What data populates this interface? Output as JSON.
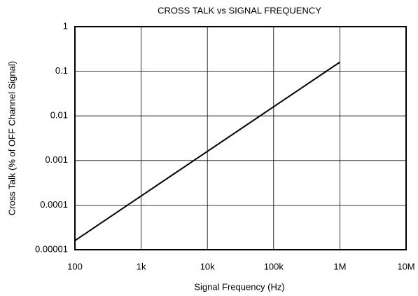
{
  "chart_data": {
    "type": "line",
    "title": "CROSS TALK vs SIGNAL FREQUENCY",
    "xlabel": "Signal Frequency (Hz)",
    "ylabel": "Cross Talk (% of OFF Channel Signal)",
    "x": [
      100,
      1000000
    ],
    "values": [
      1.6e-05,
      0.16
    ],
    "color": "#000000",
    "xscale": "log",
    "yscale": "log",
    "xlim": [
      100,
      10000000
    ],
    "ylim": [
      1e-05,
      1
    ],
    "xticks": [
      100,
      {
        "value": 1000,
        "label": "1k"
      },
      {
        "value": 10000,
        "label": "10k"
      },
      {
        "value": 100000,
        "label": "100k"
      },
      {
        "value": 1000000,
        "label": "1M"
      },
      {
        "value": 10000000,
        "label": "10M"
      }
    ],
    "yticks": [
      1,
      0.1,
      0.01,
      0.001,
      0.0001,
      1e-05
    ],
    "grid": true
  }
}
